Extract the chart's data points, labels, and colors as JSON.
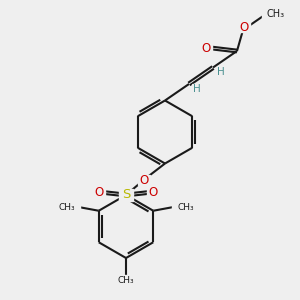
{
  "bg_color": "#efefef",
  "bond_color": "#1a1a1a",
  "bond_width": 1.5,
  "atom_colors": {
    "O": "#cc0000",
    "S": "#b8b800",
    "H": "#4a9090",
    "C": "#1a1a1a"
  },
  "layout": {
    "xlim": [
      0,
      10
    ],
    "ylim": [
      0,
      10
    ]
  }
}
